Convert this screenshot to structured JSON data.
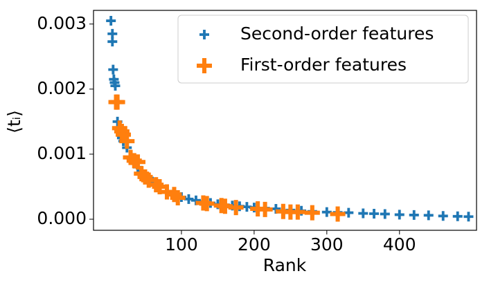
{
  "chart_data": {
    "type": "scatter",
    "xlabel": "Rank",
    "ylabel": "⟨tᵢ⟩",
    "xlim": [
      -21,
      506
    ],
    "ylim": [
      -0.00017,
      0.00321
    ],
    "xticks": [
      100,
      200,
      300,
      400
    ],
    "yticks": [
      {
        "value": 0,
        "label": "0.000"
      },
      {
        "value": 0.001,
        "label": "0.001"
      },
      {
        "value": 0.002,
        "label": "0.002"
      },
      {
        "value": 0.003,
        "label": "0.003"
      }
    ],
    "legend": "upper right",
    "series": [
      {
        "name": "Second-order features",
        "color": "#1f77b4",
        "marker_size": 7,
        "x": [
          3,
          5,
          5,
          6,
          7,
          8,
          9,
          10,
          12,
          15,
          18,
          20,
          25,
          30,
          35,
          40,
          45,
          50,
          55,
          60,
          70,
          80,
          90,
          100,
          110,
          120,
          130,
          140,
          150,
          160,
          170,
          180,
          190,
          200,
          215,
          230,
          250,
          265,
          280,
          300,
          315,
          330,
          350,
          365,
          380,
          400,
          420,
          440,
          460,
          480,
          495
        ],
        "values": [
          0.00305,
          0.00285,
          0.00273,
          0.0023,
          0.00215,
          0.0021,
          0.00205,
          0.0018,
          0.0015,
          0.00135,
          0.00125,
          0.0012,
          0.0011,
          0.00095,
          0.00088,
          0.0008,
          0.00073,
          0.00068,
          0.00062,
          0.00058,
          0.0005,
          0.00043,
          0.00038,
          0.00034,
          0.00031,
          0.00029,
          0.00027,
          0.00025,
          0.00023,
          0.00022,
          0.00021,
          0.0002,
          0.00019,
          0.00018,
          0.00017,
          0.00016,
          0.00014,
          0.00013,
          0.00012,
          0.00011,
          0.000105,
          0.0001,
          9e-05,
          8.5e-05,
          8e-05,
          7e-05,
          6.5e-05,
          6e-05,
          5e-05,
          4.5e-05,
          4e-05
        ]
      },
      {
        "name": "First-order features",
        "color": "#ff7f0e",
        "marker_size": 11,
        "x": [
          10,
          12,
          15,
          18,
          20,
          25,
          30,
          35,
          40,
          45,
          50,
          55,
          65,
          70,
          80,
          90,
          95,
          130,
          135,
          155,
          160,
          175,
          205,
          215,
          240,
          250,
          260,
          280,
          315
        ],
        "values": [
          0.0018,
          0.0018,
          0.0014,
          0.00135,
          0.0013,
          0.0012,
          0.00095,
          0.0009,
          0.00088,
          0.0007,
          0.00065,
          0.0006,
          0.00053,
          0.0005,
          0.00042,
          0.00038,
          0.00033,
          0.00025,
          0.00024,
          0.00021,
          0.0002,
          0.00018,
          0.00016,
          0.00015,
          0.00012,
          0.00011,
          0.00011,
          0.0001,
          8e-05
        ]
      }
    ]
  }
}
